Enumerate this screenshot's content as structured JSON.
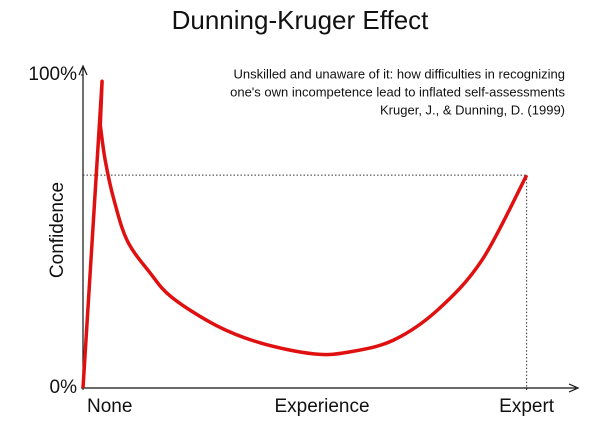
{
  "chart_data": {
    "type": "line",
    "title": "Dunning-Kruger Effect",
    "subtitle": [
      "Unskilled and unaware of it: how difficulties in recognizing",
      "one's own incompetence lead to inflated self-assessments",
      "Kruger, J., & Dunning, D. (1999)"
    ],
    "xlabel": "Experience",
    "ylabel": "Confidence",
    "x": [
      0,
      4.3,
      3.9,
      5,
      7,
      10,
      15,
      20,
      30,
      40,
      52,
      60,
      70,
      80,
      90,
      100
    ],
    "values": [
      0,
      98,
      84,
      72.8,
      60,
      47,
      37,
      29,
      20,
      14.4,
      10.9,
      11.5,
      15.3,
      25,
      41,
      68
    ],
    "color": "#e01010",
    "xlim": [
      0,
      110
    ],
    "ylim": [
      0,
      100
    ],
    "xticks": [
      {
        "value": 0,
        "label": "None"
      },
      {
        "value": 100,
        "label": "Expert"
      }
    ],
    "yticks": [
      {
        "value": 0,
        "label": "0%"
      },
      {
        "value": 100,
        "label": "100%"
      }
    ],
    "grid": false
  }
}
